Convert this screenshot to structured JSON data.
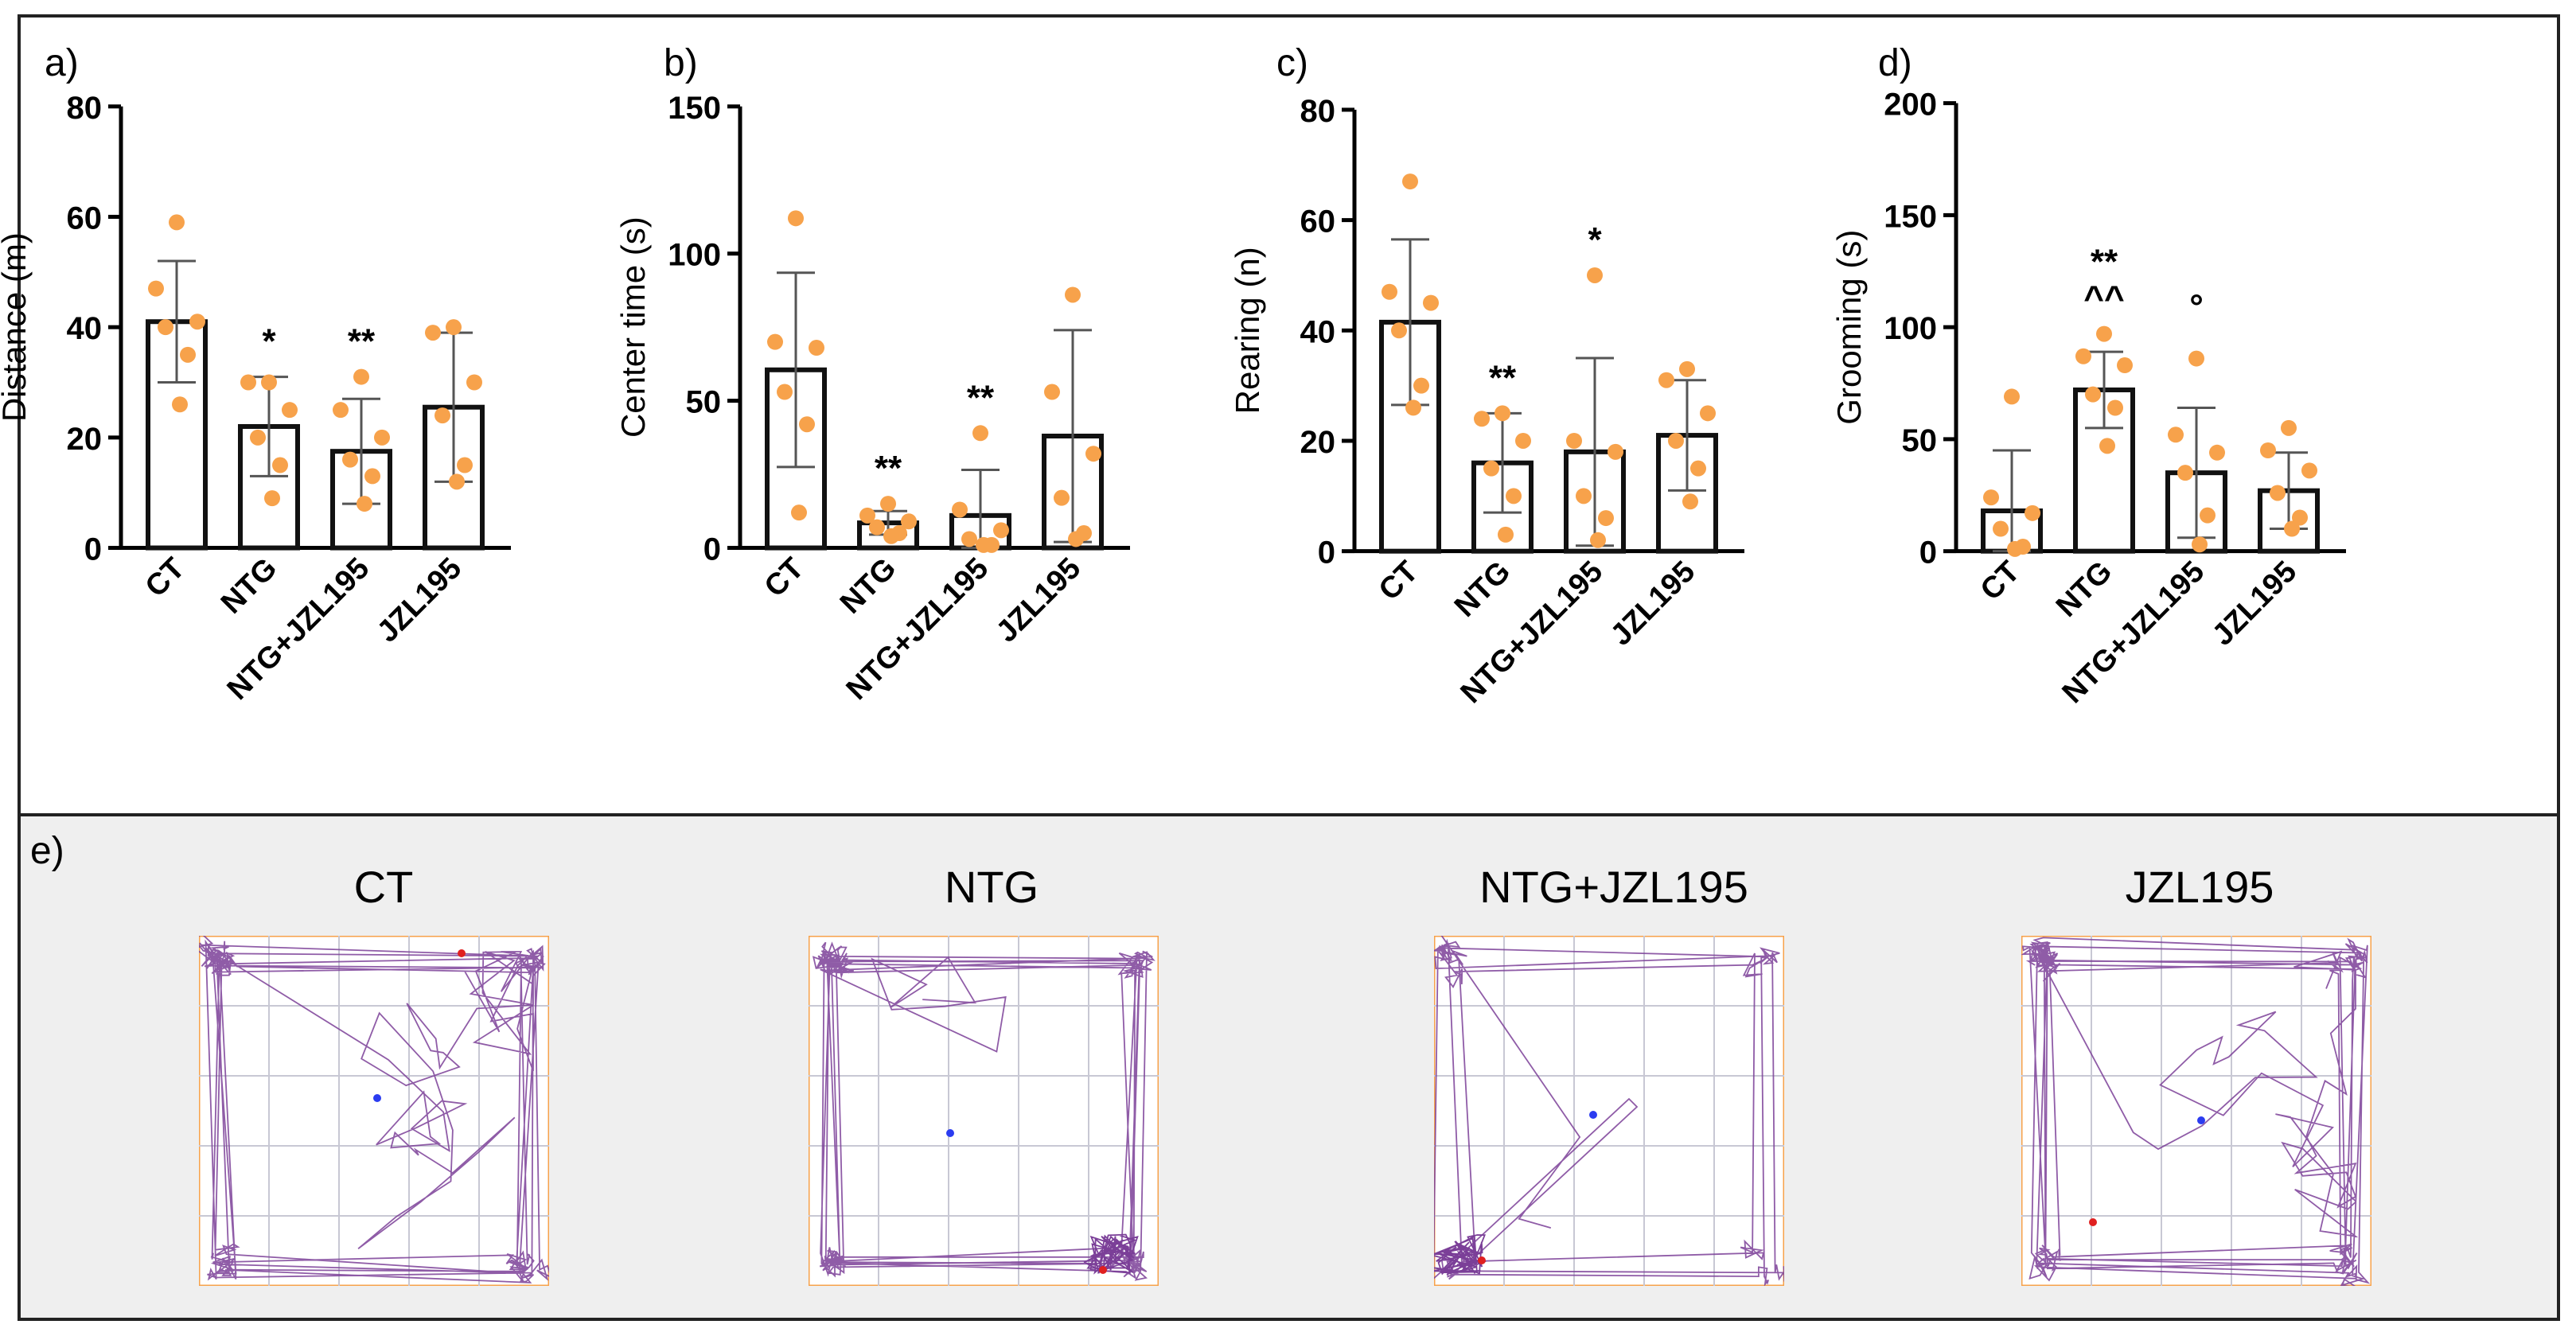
{
  "colors": {
    "point": "#F7A24B",
    "bar": "#111111",
    "error": "#555555",
    "track": "#7B3F98",
    "arena_border": "#F7A24B",
    "grid": "#c8c8d4",
    "start": "#e02020",
    "end": "#2b3cf0",
    "panel_bg": "#efefef"
  },
  "chart_data": [
    {
      "panel": "a)",
      "type": "bar",
      "ylabel": "Distance (m)",
      "ylim": [
        0,
        80
      ],
      "yticks": [
        "0",
        "20",
        "40",
        "60",
        "80"
      ],
      "yticks_values": [
        0,
        20,
        40,
        60,
        80
      ],
      "categories": [
        "CT",
        "NTG",
        "NTG+JZL195",
        "JZL195"
      ],
      "values": [
        41,
        22,
        17.5,
        25.5
      ],
      "sd": [
        11,
        9,
        9.5,
        13.5
      ],
      "points": [
        [
          59,
          47,
          41,
          40,
          35,
          26
        ],
        [
          30,
          30,
          25,
          20,
          15,
          9
        ],
        [
          31,
          25,
          20,
          16,
          13,
          8
        ],
        [
          40,
          39,
          30,
          24,
          15,
          12
        ]
      ],
      "annotations": [
        {
          "category": "NTG",
          "text": "*"
        },
        {
          "category": "NTG+JZL195",
          "text": "**"
        }
      ]
    },
    {
      "panel": "b)",
      "type": "bar",
      "ylabel": "Center time (s)",
      "ylim": [
        0,
        150
      ],
      "yticks": [
        "0",
        "50",
        "100",
        "150"
      ],
      "yticks_values": [
        0,
        50,
        100,
        150
      ],
      "categories": [
        "CT",
        "NTG",
        "NTG+JZL195",
        "JZL195"
      ],
      "values": [
        60.5,
        8.5,
        11,
        38
      ],
      "sd": [
        33,
        4,
        15.5,
        36
      ],
      "points": [
        [
          112,
          70,
          68,
          53,
          42,
          12
        ],
        [
          15,
          11,
          9,
          7,
          5,
          4
        ],
        [
          39,
          13,
          6,
          3,
          1,
          1
        ],
        [
          86,
          53,
          32,
          17,
          5,
          3
        ]
      ],
      "annotations": [
        {
          "category": "NTG",
          "text": "**"
        },
        {
          "category": "NTG+JZL195",
          "text": "**"
        }
      ]
    },
    {
      "panel": "c)",
      "type": "bar",
      "ylabel": "Rearing (n)",
      "ylim": [
        0,
        80
      ],
      "yticks": [
        "0",
        "20",
        "40",
        "60",
        "80"
      ],
      "yticks_values": [
        0,
        20,
        40,
        60,
        80
      ],
      "categories": [
        "CT",
        "NTG",
        "NTG+JZL195",
        "JZL195"
      ],
      "values": [
        41.5,
        16,
        18,
        21
      ],
      "sd": [
        15,
        9,
        17,
        10
      ],
      "points": [
        [
          67,
          47,
          45,
          40,
          30,
          26
        ],
        [
          25,
          24,
          20,
          15,
          10,
          3
        ],
        [
          50,
          20,
          18,
          10,
          6,
          2
        ],
        [
          33,
          31,
          25,
          20,
          15,
          9
        ]
      ],
      "annotations": [
        {
          "category": "NTG",
          "text": "**"
        },
        {
          "category": "NTG+JZL195",
          "text": "*"
        }
      ]
    },
    {
      "panel": "d)",
      "type": "bar",
      "ylabel": "Grooming (s)",
      "ylim": [
        0,
        200
      ],
      "yticks": [
        "0",
        "50",
        "100",
        "150",
        "200"
      ],
      "yticks_values": [
        0,
        50,
        100,
        150,
        200
      ],
      "categories": [
        "CT",
        "NTG",
        "NTG+JZL195",
        "JZL195"
      ],
      "values": [
        18,
        72,
        35,
        27
      ],
      "sd": [
        27,
        17,
        29,
        17
      ],
      "points": [
        [
          69,
          24,
          17,
          10,
          2,
          1
        ],
        [
          97,
          87,
          83,
          70,
          64,
          47
        ],
        [
          86,
          52,
          44,
          35,
          16,
          3
        ],
        [
          55,
          45,
          36,
          26,
          15,
          10
        ]
      ],
      "annotations": [
        {
          "category": "NTG",
          "text": "**"
        },
        {
          "category": "NTG",
          "text": "^^"
        },
        {
          "category": "NTG+JZL195",
          "text": "°"
        }
      ]
    }
  ],
  "tracks_panel": {
    "label": "e)",
    "titles": [
      "CT",
      "NTG",
      "NTG+JZL195",
      "JZL195"
    ]
  }
}
